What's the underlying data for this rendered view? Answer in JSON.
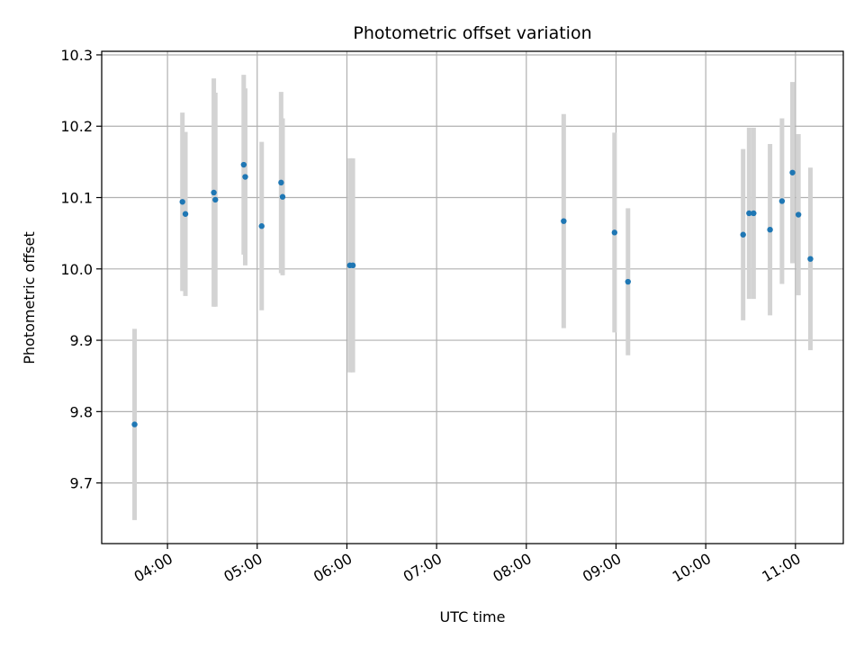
{
  "chart_data": {
    "type": "scatter",
    "title": "Photometric offset variation",
    "xlabel": "UTC time",
    "ylabel": "Photometric offset",
    "xlim": [
      "03:16",
      "11:32"
    ],
    "ylim": [
      9.615,
      10.305
    ],
    "x_ticks": [
      "04:00",
      "05:00",
      "06:00",
      "07:00",
      "08:00",
      "09:00",
      "10:00",
      "11:00"
    ],
    "y_ticks": [
      9.7,
      9.8,
      9.9,
      10.0,
      10.1,
      10.2,
      10.3
    ],
    "y_tick_labels": [
      "9.7",
      "9.8",
      "9.9",
      "10.0",
      "10.1",
      "10.2",
      "10.3"
    ],
    "grid": true,
    "colors": {
      "point": "#1f77b4",
      "errorbar": "#d3d3d3",
      "grid": "#b0b0b0"
    },
    "series": [
      {
        "points": [
          {
            "time": "03:38",
            "y": 9.782,
            "err": 0.134
          },
          {
            "time": "04:10",
            "y": 10.094,
            "err": 0.125
          },
          {
            "time": "04:12",
            "y": 10.077,
            "err": 0.115
          },
          {
            "time": "04:31",
            "y": 10.107,
            "err": 0.16
          },
          {
            "time": "04:32",
            "y": 10.097,
            "err": 0.15
          },
          {
            "time": "04:51",
            "y": 10.146,
            "err": 0.126
          },
          {
            "time": "04:52",
            "y": 10.129,
            "err": 0.124
          },
          {
            "time": "05:03",
            "y": 10.06,
            "err": 0.118
          },
          {
            "time": "05:16",
            "y": 10.121,
            "err": 0.127
          },
          {
            "time": "05:17",
            "y": 10.101,
            "err": 0.11
          },
          {
            "time": "06:02",
            "y": 10.005,
            "err": 0.15
          },
          {
            "time": "06:04",
            "y": 10.005,
            "err": 0.15
          },
          {
            "time": "08:25",
            "y": 10.067,
            "err": 0.15
          },
          {
            "time": "08:59",
            "y": 10.051,
            "err": 0.14
          },
          {
            "time": "09:08",
            "y": 9.982,
            "err": 0.103
          },
          {
            "time": "10:25",
            "y": 10.048,
            "err": 0.12
          },
          {
            "time": "10:29",
            "y": 10.078,
            "err": 0.12
          },
          {
            "time": "10:32",
            "y": 10.078,
            "err": 0.12
          },
          {
            "time": "10:43",
            "y": 10.055,
            "err": 0.12
          },
          {
            "time": "10:51",
            "y": 10.095,
            "err": 0.116
          },
          {
            "time": "10:58",
            "y": 10.135,
            "err": 0.127
          },
          {
            "time": "11:02",
            "y": 10.076,
            "err": 0.113
          },
          {
            "time": "11:10",
            "y": 10.014,
            "err": 0.128
          }
        ]
      }
    ]
  }
}
